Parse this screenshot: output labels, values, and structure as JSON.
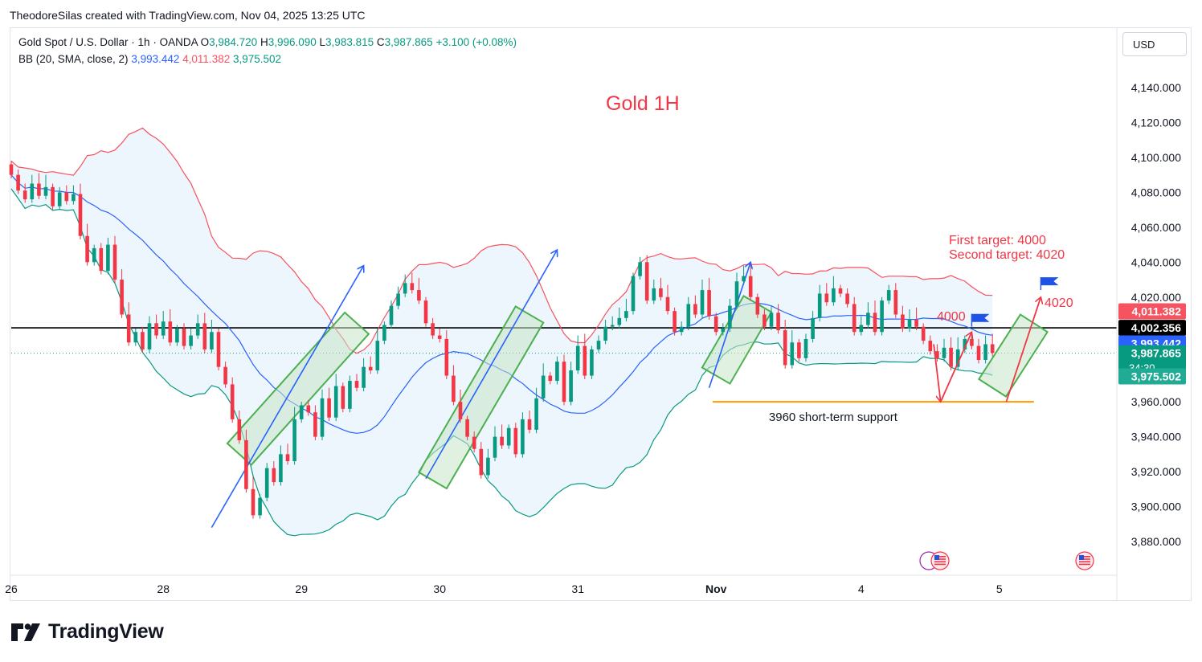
{
  "header": {
    "attribution": "TheodoreSilas created with TradingView.com, Nov 04, 2025 13:25 UTC"
  },
  "legend": {
    "symbol": "Gold Spot / U.S. Dollar · 1h · OANDA",
    "o_label": "O",
    "o": "3,984.720",
    "h_label": "H",
    "h": "3,996.090",
    "l_label": "L",
    "l": "3,983.815",
    "c_label": "C",
    "c": "3,987.865",
    "change": "+3.100 (+0.08%)",
    "bb_label": "BB (20, SMA, close, 2)",
    "bb_basis": "3,993.442",
    "bb_upper": "4,011.382",
    "bb_lower": "3,975.502"
  },
  "currency_button": "USD",
  "brand": "TradingView",
  "colors": {
    "up": "#089981",
    "down": "#f23645",
    "bb_basis": "#2962ff",
    "bb_upper": "#f7525f",
    "bb_lower": "#089981",
    "band_fill": "#e9f4fb",
    "support": "#ff9800",
    "annotation": "#f23645",
    "box": "#4caf50",
    "box_fill": "#c8e6c9",
    "arrow_blue": "#2962ff"
  },
  "chart_data": {
    "type": "candlestick",
    "title": "Gold 1H",
    "ylim": [
      3870,
      4150
    ],
    "y_ticks": [
      "4,140.000",
      "4,120.000",
      "4,100.000",
      "4,080.000",
      "4,060.000",
      "4,040.000",
      "4,020.000",
      "3,960.000",
      "3,940.000",
      "3,920.000",
      "3,900.000",
      "3,880.000"
    ],
    "x_ticks": [
      {
        "label": "26",
        "t": 0
      },
      {
        "label": "28",
        "t": 22
      },
      {
        "label": "29",
        "t": 42
      },
      {
        "label": "30",
        "t": 62
      },
      {
        "label": "31",
        "t": 82
      },
      {
        "label": "Nov",
        "t": 102
      },
      {
        "label": "4",
        "t": 123
      },
      {
        "label": "5",
        "t": 143
      }
    ],
    "price_labels": [
      {
        "text": "4,011.382",
        "value": 4011.382,
        "bg": "#f7525f",
        "fg": "#ffffff"
      },
      {
        "text": "4,002.356",
        "value": 4002.356,
        "bg": "#000000",
        "fg": "#ffffff"
      },
      {
        "text": "3,993.442",
        "value": 3993.442,
        "bg": "#2962ff",
        "fg": "#ffffff"
      },
      {
        "text": "3,987.865",
        "value": 3987.865,
        "bg": "#089981",
        "fg": "#ffffff",
        "sub": "34:30"
      },
      {
        "text": "3,975.502",
        "value": 3975.502,
        "bg": "#22ab94",
        "fg": "#ffffff"
      }
    ],
    "horizontal_line": 4002.356,
    "close_line": 3987.865,
    "support": {
      "value": 3960,
      "t_from": 101.5,
      "t_to": 148,
      "label": "3960 short-term support"
    },
    "annotations": {
      "target1": "First target: 4000",
      "target2": "Second target: 4020",
      "level1": "4000",
      "level2": "4020"
    },
    "plan_path": [
      [
        133.5,
        3993
      ],
      [
        134.5,
        3960
      ],
      [
        139,
        4000
      ]
    ],
    "plan_path2": [
      [
        144,
        3960
      ],
      [
        149,
        4020
      ]
    ],
    "closes": [
      4090,
      4081,
      4076,
      4085,
      4078,
      4083,
      4072,
      4080,
      4075,
      4079,
      4055,
      4040,
      4048,
      4035,
      4050,
      4030,
      4010,
      3994,
      4000,
      3990,
      4005,
      3998,
      4006,
      3994,
      4002,
      3992,
      3998,
      4005,
      3990,
      4000,
      3980,
      3970,
      3950,
      3938,
      3910,
      3895,
      3905,
      3922,
      3914,
      3930,
      3926,
      3950,
      3958,
      3954,
      3940,
      3962,
      3951,
      3969,
      3956,
      3972,
      3968,
      3980,
      3978,
      3995,
      4004,
      4015,
      4022,
      4028,
      4024,
      4018,
      4005,
      3998,
      3996,
      3975,
      3960,
      3950,
      3940,
      3933,
      3918,
      3928,
      3940,
      3935,
      3945,
      3930,
      3950,
      3944,
      3962,
      3975,
      3972,
      3983,
      3960,
      3978,
      3992,
      3975,
      3990,
      3995,
      4003,
      4004,
      4008,
      4012,
      4032,
      4040,
      4018,
      4025,
      4020,
      4012,
      4000,
      4003,
      4016,
      4010,
      4024,
      4009,
      4000,
      4002,
      4015,
      4029,
      4032,
      4020,
      4010,
      4003,
      4011,
      4001,
      3981,
      3994,
      3985,
      3996,
      4008,
      4022,
      4017,
      4025,
      4022,
      4016,
      4000,
      4004,
      4011,
      4000,
      4018,
      4024,
      4010,
      4002,
      4007,
      4003,
      3995,
      3989,
      3985,
      3991,
      3980,
      3990,
      3996,
      3992,
      3984,
      3993,
      3988
    ]
  }
}
